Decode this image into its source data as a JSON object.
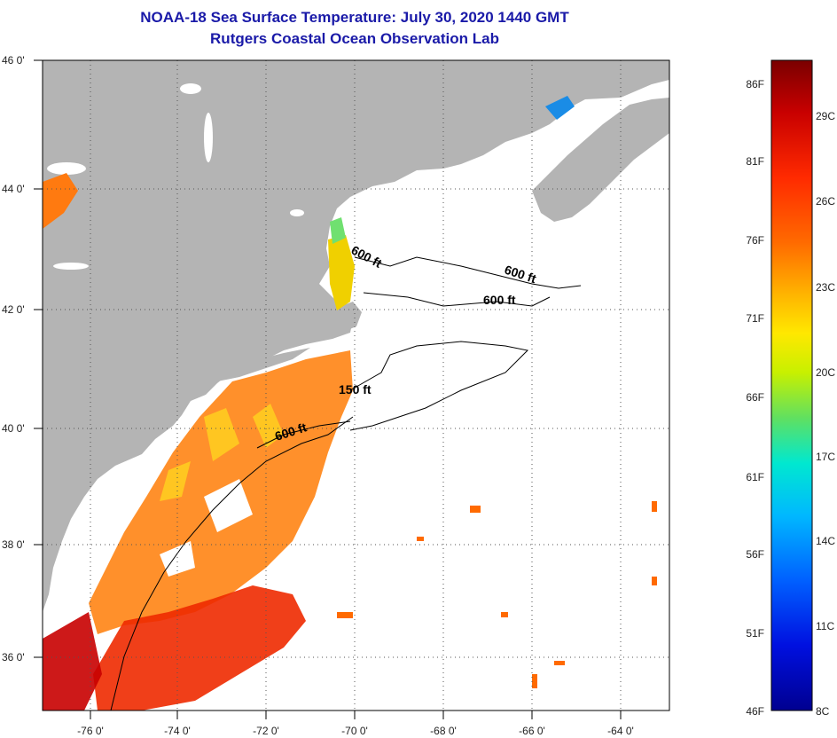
{
  "header": {
    "title": "NOAA-18 Sea Surface Temperature:  July 30, 2020 1440 GMT",
    "subtitle": "Rutgers Coastal Ocean Observation Lab"
  },
  "map": {
    "lat_labels": [
      "46 0'",
      "44 0'",
      "42 0'",
      "40 0'",
      "38 0'",
      "36 0'"
    ],
    "lon_labels": [
      "-76 0'",
      "-74 0'",
      "-72 0'",
      "-70 0'",
      "-68 0'",
      "-66 0'",
      "-64 0'"
    ],
    "contour_labels": [
      "600 ft",
      "600 ft",
      "600 ft",
      "150 ft",
      "600 ft"
    ],
    "colors": {
      "land": "#b4b4b4",
      "ocean_cloud": "#ffffff",
      "title": "#1a1aa8"
    }
  },
  "colorbar": {
    "fahrenheit_labels": [
      "86F",
      "81F",
      "76F",
      "71F",
      "66F",
      "61F",
      "56F",
      "51F",
      "46F"
    ],
    "celsius_labels": [
      "29C",
      "26C",
      "23C",
      "20C",
      "17C",
      "14C",
      "11C",
      "8C"
    ],
    "colors": [
      "#7a0000",
      "#c80000",
      "#ff2a00",
      "#ff6a00",
      "#ffb400",
      "#ffe800",
      "#c8f000",
      "#60e060",
      "#00e8d0",
      "#00b8ff",
      "#0060ff",
      "#0010e0",
      "#000090"
    ]
  }
}
